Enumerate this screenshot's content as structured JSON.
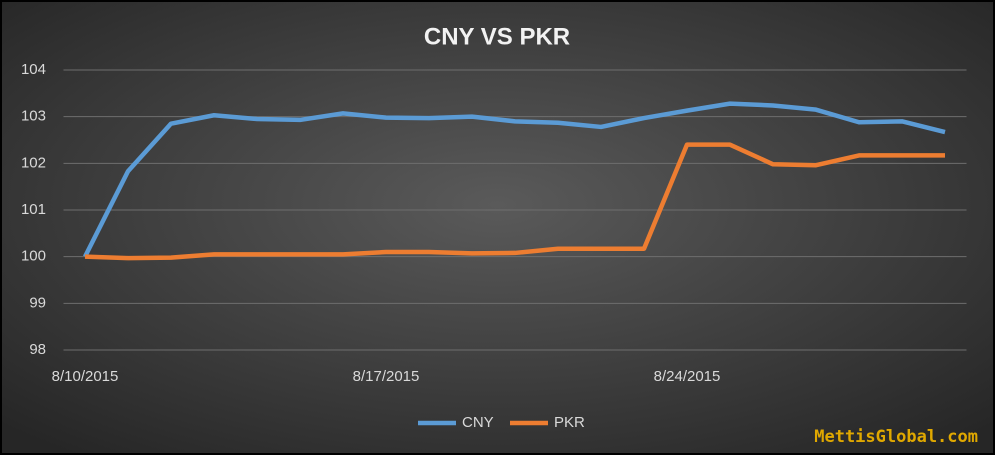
{
  "chart_data": {
    "type": "line",
    "title": "CNY VS PKR",
    "watermark": "MettisGlobal.com",
    "categories": [
      "8/10/2015",
      null,
      null,
      null,
      null,
      null,
      null,
      "8/17/2015",
      null,
      null,
      null,
      null,
      null,
      null,
      "8/24/2015",
      null,
      null,
      null,
      null,
      null,
      null
    ],
    "series": [
      {
        "name": "CNY",
        "color": "#5b9bd5",
        "values": [
          100,
          101.83,
          102.85,
          103.03,
          102.95,
          102.93,
          103.07,
          102.98,
          102.97,
          103.0,
          102.9,
          102.87,
          102.78,
          102.97,
          103.13,
          103.28,
          103.24,
          103.15,
          102.88,
          102.9,
          102.67
        ]
      },
      {
        "name": "PKR",
        "color": "#ed7d31",
        "values": [
          100,
          99.97,
          99.98,
          100.05,
          100.05,
          100.05,
          100.05,
          100.1,
          100.1,
          100.07,
          100.08,
          100.17,
          100.17,
          100.17,
          102.4,
          102.4,
          101.98,
          101.96,
          102.17,
          102.17,
          102.17
        ]
      }
    ],
    "ylim": [
      98,
      104
    ],
    "yticks": [
      98,
      99,
      100,
      101,
      102,
      103,
      104
    ],
    "grid": true,
    "legend": "bottom"
  }
}
